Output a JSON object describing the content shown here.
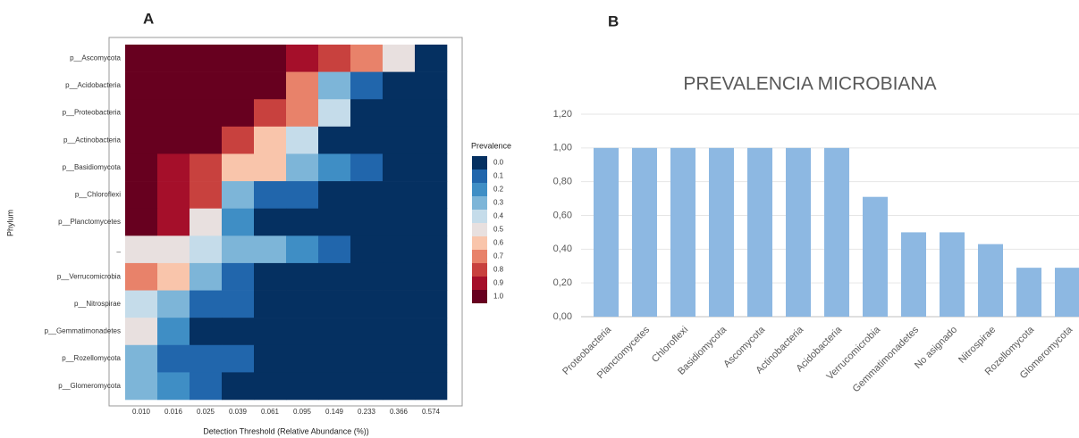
{
  "chart_data": [
    {
      "type": "heatmap",
      "panel": "A",
      "x_label": "Detection Threshold (Relative Abundance (%))",
      "y_label": "Phylum",
      "x_categories": [
        "0.010",
        "0.016",
        "0.025",
        "0.039",
        "0.061",
        "0.095",
        "0.149",
        "0.233",
        "0.366",
        "0.574"
      ],
      "y_categories": [
        "p__Ascomycota",
        "p__Acidobacteria",
        "p__Proteobacteria",
        "p__Actinobacteria",
        "p__Basidiomycota",
        "p__Chloroflexi",
        "p__Planctomycetes",
        "_",
        "p__Verrucomicrobia",
        "p__Nitrospirae",
        "p__Gemmatimonadetes",
        "p__Rozellomycota",
        "p__Glomeromycota"
      ],
      "values": [
        [
          1,
          1,
          1,
          1,
          1,
          0.9,
          0.8,
          0.7,
          0.5,
          0
        ],
        [
          1,
          1,
          1,
          1,
          1,
          0.7,
          0.3,
          0.1,
          0,
          0
        ],
        [
          1,
          1,
          1,
          1,
          0.8,
          0.7,
          0.4,
          0,
          0,
          0
        ],
        [
          1,
          1,
          1,
          0.8,
          0.6,
          0.4,
          0,
          0,
          0,
          0
        ],
        [
          1,
          0.9,
          0.8,
          0.6,
          0.6,
          0.3,
          0.2,
          0.1,
          0,
          0
        ],
        [
          1,
          0.9,
          0.8,
          0.3,
          0.1,
          0.1,
          0,
          0,
          0,
          0
        ],
        [
          1,
          0.9,
          0.5,
          0.2,
          0,
          0,
          0,
          0,
          0,
          0
        ],
        [
          0.5,
          0.5,
          0.4,
          0.3,
          0.3,
          0.2,
          0.1,
          0,
          0,
          0
        ],
        [
          0.7,
          0.6,
          0.3,
          0.1,
          0,
          0,
          0,
          0,
          0,
          0
        ],
        [
          0.4,
          0.3,
          0.1,
          0.1,
          0,
          0,
          0,
          0,
          0,
          0
        ],
        [
          0.5,
          0.2,
          0,
          0,
          0,
          0,
          0,
          0,
          0,
          0
        ],
        [
          0.3,
          0.1,
          0.1,
          0.1,
          0,
          0,
          0,
          0,
          0,
          0
        ],
        [
          0.3,
          0.2,
          0.1,
          0,
          0,
          0,
          0,
          0,
          0,
          0
        ]
      ],
      "legend_title": "Prevalence",
      "colorscale": [
        {
          "value": 0,
          "label": "0.0",
          "color": "#053061"
        },
        {
          "value": 0.1,
          "label": "0.1",
          "color": "#2166ac"
        },
        {
          "value": 0.2,
          "label": "0.2",
          "color": "#3f8ec5"
        },
        {
          "value": 0.3,
          "label": "0.3",
          "color": "#7db5d8"
        },
        {
          "value": 0.4,
          "label": "0.4",
          "color": "#c5dcea"
        },
        {
          "value": 0.5,
          "label": "0.5",
          "color": "#e8e0df"
        },
        {
          "value": 0.6,
          "label": "0.6",
          "color": "#f9c5ab"
        },
        {
          "value": 0.7,
          "label": "0.7",
          "color": "#e8826a"
        },
        {
          "value": 0.8,
          "label": "0.8",
          "color": "#c8413e"
        },
        {
          "value": 0.9,
          "label": "0.9",
          "color": "#a50f2a"
        },
        {
          "value": 1,
          "label": "1.0",
          "color": "#67001f"
        }
      ]
    },
    {
      "type": "bar",
      "panel": "B",
      "title": "PREVALENCIA MICROBIANA",
      "color": "#8db8e2",
      "categories": [
        "Proteobacteria",
        "Planctomycetes",
        "Chloroflexi",
        "Basidiomycota",
        "Ascomycota",
        "Actinobacteria",
        "Acidobacteria",
        "Verrucomicrobia",
        "Gemmatimonadetes",
        "No asignado",
        "Nitrospirae",
        "Rozellomycota",
        "Glomeromycota"
      ],
      "values": [
        1,
        1,
        1,
        1,
        1,
        1,
        1,
        0.71,
        0.5,
        0.5,
        0.43,
        0.29,
        0.29
      ],
      "ylim": [
        0,
        1.2
      ],
      "yticks": [
        {
          "value": 0,
          "label": "0,00"
        },
        {
          "value": 0.2,
          "label": "0,20"
        },
        {
          "value": 0.4,
          "label": "0,40"
        },
        {
          "value": 0.6,
          "label": "0,60"
        },
        {
          "value": 0.8,
          "label": "0,80"
        },
        {
          "value": 1,
          "label": "1,00"
        },
        {
          "value": 1.2,
          "label": "1,20"
        }
      ],
      "grid": true
    }
  ]
}
